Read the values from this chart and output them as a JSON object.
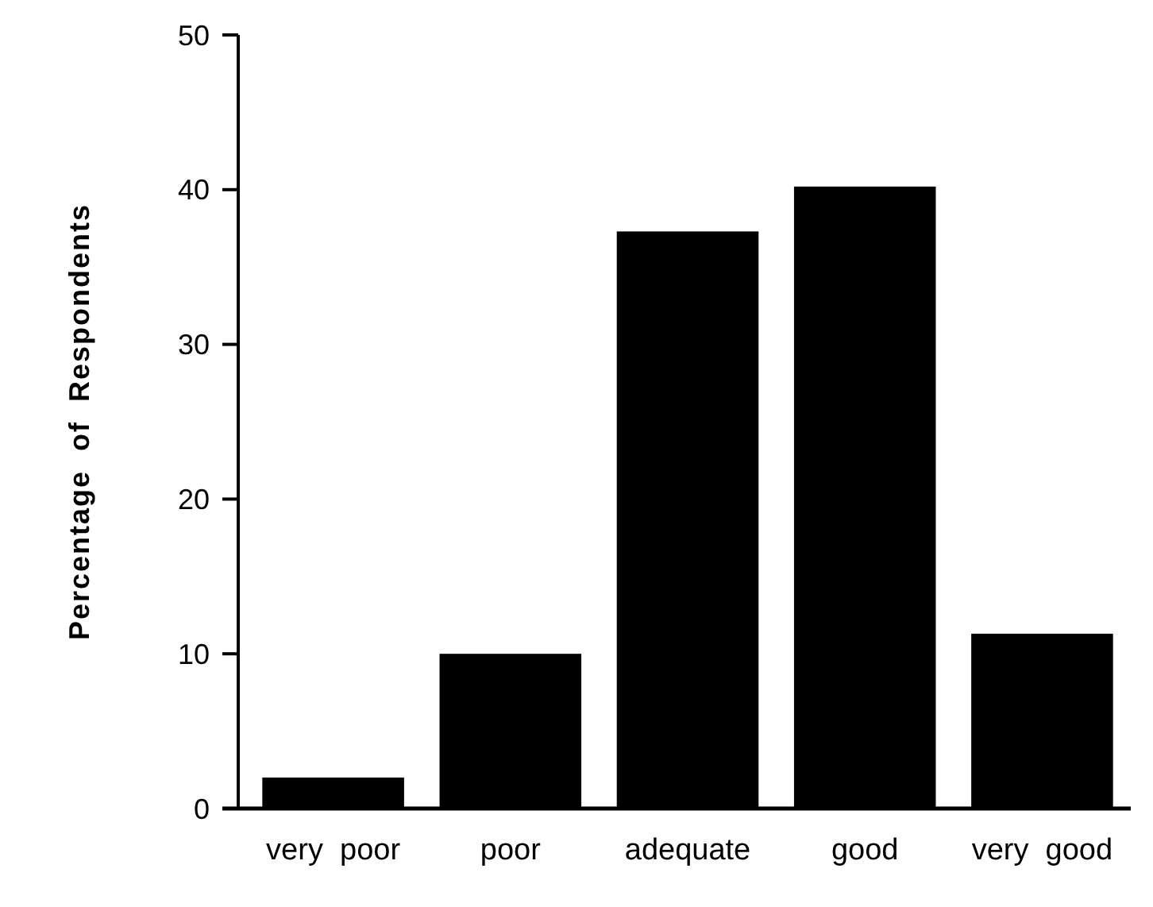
{
  "chart_data": {
    "type": "bar",
    "ylabel": "Percentage  of  Respondents",
    "categories": [
      "very  poor",
      "poor",
      "adequate",
      "good",
      "very  good"
    ],
    "values": [
      2,
      10,
      37.3,
      40.2,
      11.3
    ],
    "color": "#000000",
    "ylim": [
      0,
      50
    ],
    "yticks": [
      0,
      10,
      20,
      30,
      40,
      50
    ],
    "grid": false
  }
}
